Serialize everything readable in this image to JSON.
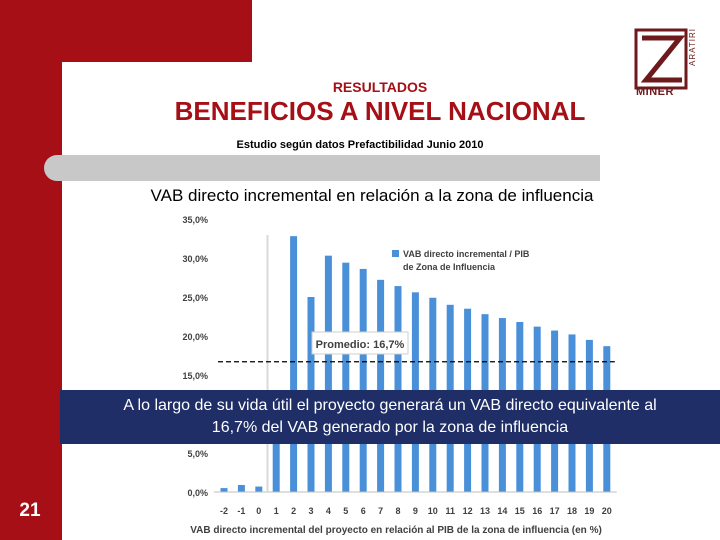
{
  "header": {
    "section": "RESULTADOS",
    "title": "BENEFICIOS A NIVEL NACIONAL",
    "subtitle": "Estudio  según  datos Prefactibilidad Junio 2010",
    "logo_main": "MINER",
    "logo_side": "ARATIRI"
  },
  "heading": "VAB directo incremental en relación a la zona de influencia",
  "overlay": {
    "line1": "A lo largo de su vida útil el proyecto generará un VAB directo equivalente al",
    "line2": "16,7% del VAB generado por la zona de influencia"
  },
  "page_number": "21",
  "colors": {
    "brand_red": "#a50f15",
    "bar_blue": "#4a90d9",
    "overlay_navy": "#1f2e66"
  },
  "chart_data": {
    "type": "bar",
    "categories": [
      "-2",
      "-1",
      "0",
      "1",
      "2",
      "3",
      "4",
      "5",
      "6",
      "7",
      "8",
      "9",
      "10",
      "11",
      "12",
      "13",
      "14",
      "15",
      "16",
      "17",
      "18",
      "19",
      "20"
    ],
    "series": [
      {
        "name": "VAB directo incremental / PIB de Zona de Influencia",
        "values": [
          0.5,
          0.9,
          0.7,
          10.7,
          32.8,
          25.0,
          30.3,
          29.4,
          28.6,
          27.2,
          26.4,
          25.6,
          24.9,
          24.0,
          23.5,
          22.8,
          22.3,
          21.8,
          21.2,
          20.7,
          20.2,
          19.5,
          18.7
        ]
      }
    ],
    "legend": [
      "VAB directo incremental / PIB",
      "de Zona de Influencia"
    ],
    "legend_position": "top-right",
    "yticks": [
      "35,0%",
      "30,0%",
      "25,0%",
      "20,0%",
      "15,0%",
      "5,0%",
      "0,0%"
    ],
    "ylim": [
      0,
      35
    ],
    "xlabel": "VAB directo incremental del proyecto en relación al PIB de la zona de influencia (en %)",
    "average": 16.7,
    "annotation": "Promedio: 16,7%",
    "grid": false
  }
}
